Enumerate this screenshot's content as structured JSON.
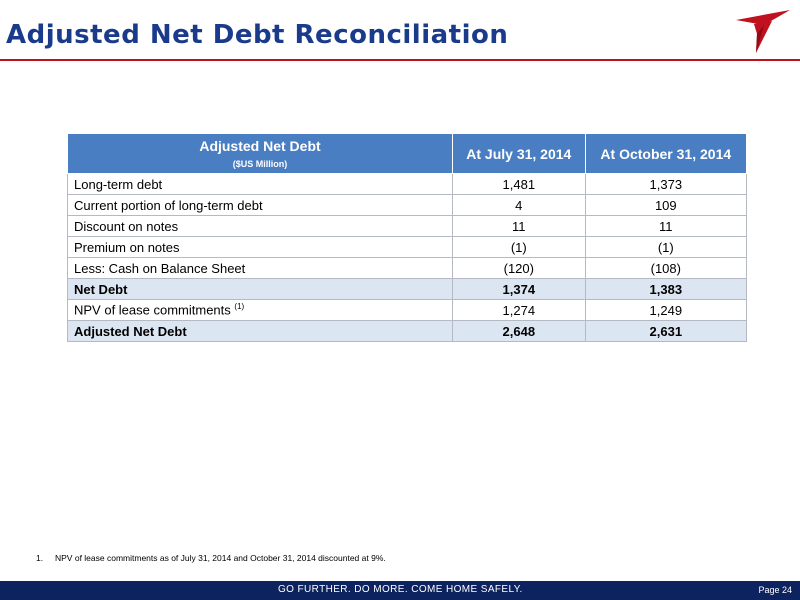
{
  "header": {
    "title": "Adjusted Net Debt Reconciliation",
    "logo_icon": "bird-logo-icon",
    "accent_color": "#c0111f",
    "title_color": "#1a3a8c"
  },
  "table": {
    "header": {
      "label": "Adjusted Net Debt",
      "sublabel": "($US Million)",
      "col1": "At July 31, 2014",
      "col2": "At October 31, 2014"
    },
    "header_color": "#4a7ec3",
    "highlight_color": "#dce6f2",
    "rows": [
      {
        "label": "Long-term debt",
        "col1": "1,481",
        "col2": "1,373"
      },
      {
        "label": "Current portion of long-term debt",
        "col1": "4",
        "col2": "109"
      },
      {
        "label": "Discount on notes",
        "col1": "11",
        "col2": "11"
      },
      {
        "label": "Premium on notes",
        "col1": "(1)",
        "col2": "(1)"
      },
      {
        "label": "Less: Cash on Balance Sheet",
        "col1": "(120)",
        "col2": "(108)"
      },
      {
        "label": "Net Debt",
        "col1": "1,374",
        "col2": "1,383"
      },
      {
        "label": "NPV of lease commitments",
        "note": "(1)",
        "col1": "1,274",
        "col2": "1,249"
      },
      {
        "label": "Adjusted Net Debt",
        "col1": "2,648",
        "col2": "2,631"
      }
    ]
  },
  "footnote": {
    "number": "1.",
    "text": "NPV of lease commitments as  of July 31, 2014 and October 31, 2014 discounted at 9%."
  },
  "footer": {
    "slogan": "GO FURTHER. DO MORE. COME HOME SAFELY.",
    "page": "Page 24",
    "bar_color": "#0d2360"
  }
}
